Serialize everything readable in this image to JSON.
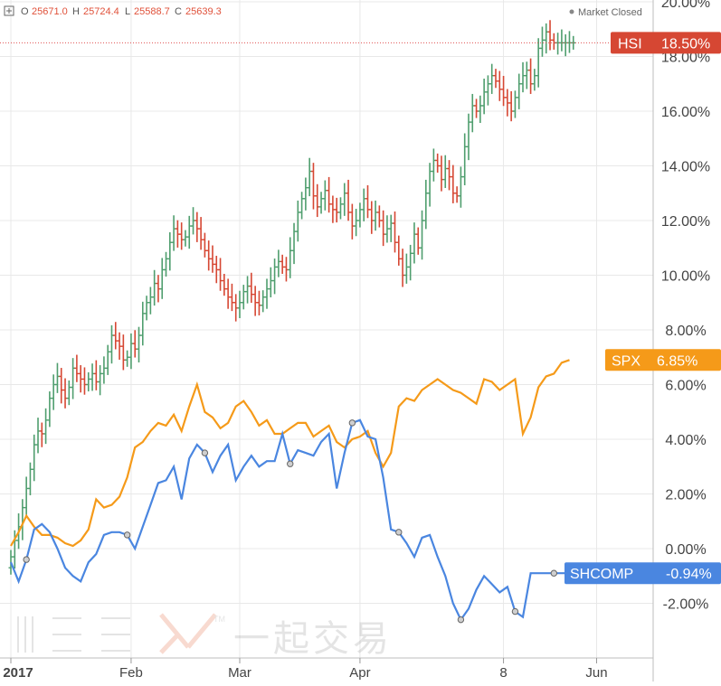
{
  "header": {
    "ohlc": [
      {
        "label": "O",
        "value": "25671.0"
      },
      {
        "label": "H",
        "value": "25724.4"
      },
      {
        "label": "L",
        "value": "25588.7"
      },
      {
        "label": "C",
        "value": "25639.3"
      }
    ],
    "status": "Market Closed"
  },
  "watermark": {
    "text": "一起交易",
    "tm": "TM"
  },
  "colors": {
    "hsi_up": "#4f9e6e",
    "hsi_down": "#d64733",
    "hsi_tag": "#d64733",
    "spx": "#f59a19",
    "shcomp": "#4a86e0",
    "grid": "#e8e8e8",
    "hsi_ref_line": "#e05050"
  },
  "chart_data": {
    "type": "line",
    "title": "",
    "xlabel": "",
    "ylabel": "",
    "ylim": [
      -4.0,
      20.0
    ],
    "yticks": [
      "20.00%",
      "18.00%",
      "16.00%",
      "14.00%",
      "12.00%",
      "10.00%",
      "8.00%",
      "6.00%",
      "4.00%",
      "2.00%",
      "0.00%",
      "-2.00%"
    ],
    "ytick_values": [
      20,
      18,
      16,
      14,
      12,
      10,
      8,
      6,
      4,
      2,
      0,
      -2
    ],
    "xticks": [
      {
        "label": "2017",
        "day": 0
      },
      {
        "label": "Feb",
        "day": 31
      },
      {
        "label": "Mar",
        "day": 59
      },
      {
        "label": "Apr",
        "day": 90
      },
      {
        "label": "8",
        "day": 127
      },
      {
        "label": "Jun",
        "day": 151
      }
    ],
    "series": [
      {
        "name": "HSI",
        "kind": "ohlc",
        "last_label": "18.50%",
        "x": [
          0,
          1,
          2,
          3,
          4,
          5,
          6,
          7,
          8,
          9,
          10,
          11,
          12,
          13,
          14,
          15,
          16,
          17,
          18,
          19,
          20,
          21,
          22,
          23,
          24,
          25,
          26,
          27,
          28,
          29,
          30,
          31,
          32,
          33,
          34,
          35,
          36,
          37,
          38,
          39,
          40,
          41,
          42,
          43,
          44,
          45,
          46,
          47,
          48,
          49,
          50,
          51,
          52,
          53,
          54,
          55,
          56,
          57,
          58,
          59,
          60,
          61,
          62,
          63,
          64,
          65,
          66,
          67,
          68,
          69,
          70,
          71,
          72,
          73,
          74,
          75,
          76,
          77,
          78,
          79,
          80,
          81,
          82,
          83,
          84,
          85,
          86,
          87,
          88,
          89,
          90,
          91,
          92,
          93,
          94,
          95,
          96,
          97,
          98,
          99,
          100,
          101,
          102,
          103,
          104,
          105,
          106,
          107,
          108,
          109,
          110,
          111,
          112,
          113,
          114,
          115,
          116,
          117,
          118,
          119,
          120,
          121,
          122,
          123,
          124,
          125,
          126,
          127,
          128,
          129,
          130,
          131,
          132,
          133,
          134,
          135,
          136,
          137,
          138,
          139,
          140,
          141,
          142,
          143,
          144,
          145
        ],
        "close": [
          -0.3,
          0.3,
          0.8,
          1.5,
          2.2,
          2.9,
          3.8,
          4.3,
          4.2,
          4.7,
          5.5,
          6.0,
          6.3,
          5.8,
          5.5,
          5.9,
          6.6,
          6.4,
          6.2,
          6.0,
          6.2,
          6.4,
          6.1,
          6.4,
          6.6,
          7.2,
          7.8,
          7.6,
          7.4,
          6.9,
          7.0,
          7.5,
          7.3,
          7.8,
          8.6,
          9.0,
          9.2,
          9.7,
          9.5,
          10.2,
          10.6,
          11.2,
          11.7,
          11.5,
          11.3,
          11.4,
          11.8,
          12.0,
          11.7,
          11.3,
          10.9,
          10.6,
          10.4,
          10.2,
          9.8,
          9.5,
          9.2,
          9.0,
          8.8,
          9.0,
          9.4,
          9.6,
          9.3,
          9.0,
          8.9,
          9.2,
          9.5,
          9.8,
          10.3,
          10.5,
          10.3,
          10.2,
          10.9,
          11.6,
          12.3,
          12.8,
          13.2,
          13.8,
          12.9,
          12.5,
          12.8,
          13.1,
          12.6,
          12.4,
          12.3,
          12.6,
          13.0,
          12.3,
          11.8,
          12.0,
          12.4,
          12.8,
          12.4,
          12.0,
          12.3,
          12.0,
          11.5,
          11.7,
          11.9,
          11.2,
          10.6,
          10.0,
          10.3,
          10.8,
          11.5,
          11.0,
          12.0,
          13.0,
          13.8,
          14.2,
          14.0,
          13.5,
          13.9,
          13.6,
          13.0,
          12.9,
          13.6,
          14.7,
          15.6,
          16.2,
          16.0,
          16.2,
          16.7,
          17.0,
          17.3,
          17.1,
          16.8,
          16.5,
          16.3,
          16.0,
          16.5,
          17.0,
          17.3,
          17.5,
          17.0,
          17.3,
          18.3,
          18.6,
          18.9,
          18.6,
          18.5,
          18.5,
          18.5,
          18.5,
          18.5,
          18.5
        ]
      },
      {
        "name": "SPX",
        "kind": "line",
        "last_label": "6.85%",
        "x": [
          0,
          2,
          4,
          6,
          8,
          10,
          12,
          14,
          16,
          18,
          20,
          22,
          24,
          26,
          28,
          30,
          32,
          34,
          36,
          38,
          40,
          42,
          44,
          46,
          48,
          50,
          52,
          54,
          56,
          58,
          60,
          62,
          64,
          66,
          68,
          70,
          72,
          74,
          76,
          78,
          80,
          82,
          84,
          86,
          88,
          90,
          92,
          94,
          96,
          98,
          100,
          102,
          104,
          106,
          108,
          110,
          112,
          114,
          116,
          118,
          120,
          122,
          124,
          126,
          128,
          130,
          132,
          134,
          136,
          138,
          140,
          142,
          144
        ],
        "values": [
          0.1,
          0.6,
          1.2,
          0.8,
          0.5,
          0.5,
          0.4,
          0.2,
          0.1,
          0.3,
          0.7,
          1.8,
          1.5,
          1.6,
          1.9,
          2.6,
          3.7,
          3.9,
          4.3,
          4.6,
          4.5,
          4.9,
          4.3,
          5.2,
          6.0,
          5.0,
          4.8,
          4.4,
          4.6,
          5.2,
          5.4,
          5.0,
          4.5,
          4.7,
          4.2,
          4.2,
          4.4,
          4.6,
          4.6,
          4.1,
          4.3,
          4.5,
          3.9,
          3.7,
          4.0,
          4.1,
          4.3,
          3.5,
          3.0,
          3.5,
          5.2,
          5.5,
          5.4,
          5.8,
          6.0,
          6.2,
          6.0,
          5.8,
          5.7,
          5.5,
          5.3,
          6.2,
          6.1,
          5.8,
          6.0,
          6.2,
          4.2,
          4.8,
          5.9,
          6.3,
          6.4,
          6.8,
          6.9
        ]
      },
      {
        "name": "SHCOMP",
        "kind": "line",
        "last_label": "-0.94%",
        "x": [
          0,
          2,
          4,
          6,
          8,
          10,
          12,
          14,
          16,
          18,
          20,
          22,
          24,
          26,
          28,
          30,
          32,
          34,
          36,
          38,
          40,
          42,
          44,
          46,
          48,
          50,
          52,
          54,
          56,
          58,
          60,
          62,
          64,
          66,
          68,
          70,
          72,
          74,
          76,
          78,
          80,
          82,
          84,
          86,
          88,
          90,
          92,
          94,
          96,
          98,
          100,
          102,
          104,
          106,
          108,
          110,
          112,
          114,
          116,
          118,
          120,
          122,
          124,
          126,
          128,
          130,
          132,
          134,
          136,
          138,
          140,
          142,
          144
        ],
        "values": [
          -0.5,
          -1.2,
          -0.4,
          0.7,
          0.9,
          0.6,
          0.0,
          -0.7,
          -1.0,
          -1.2,
          -0.5,
          -0.2,
          0.5,
          0.6,
          0.6,
          0.5,
          0.0,
          0.8,
          1.6,
          2.4,
          2.5,
          3.0,
          1.8,
          3.3,
          3.8,
          3.5,
          2.8,
          3.4,
          3.8,
          2.5,
          3.0,
          3.4,
          3.0,
          3.2,
          3.2,
          4.2,
          3.1,
          3.6,
          3.5,
          3.4,
          3.9,
          4.2,
          2.2,
          3.5,
          4.6,
          4.7,
          4.1,
          4.0,
          2.6,
          0.7,
          0.6,
          0.2,
          -0.3,
          0.4,
          0.5,
          -0.3,
          -1.0,
          -2.0,
          -2.6,
          -2.2,
          -1.5,
          -1.0,
          -1.3,
          -1.6,
          -1.4,
          -2.3,
          -2.5,
          -0.9,
          -0.9,
          -0.9,
          -0.9,
          -0.9,
          -0.9
        ],
        "markers_x": [
          4,
          30,
          50,
          72,
          88,
          100,
          116,
          130,
          140
        ]
      }
    ]
  }
}
